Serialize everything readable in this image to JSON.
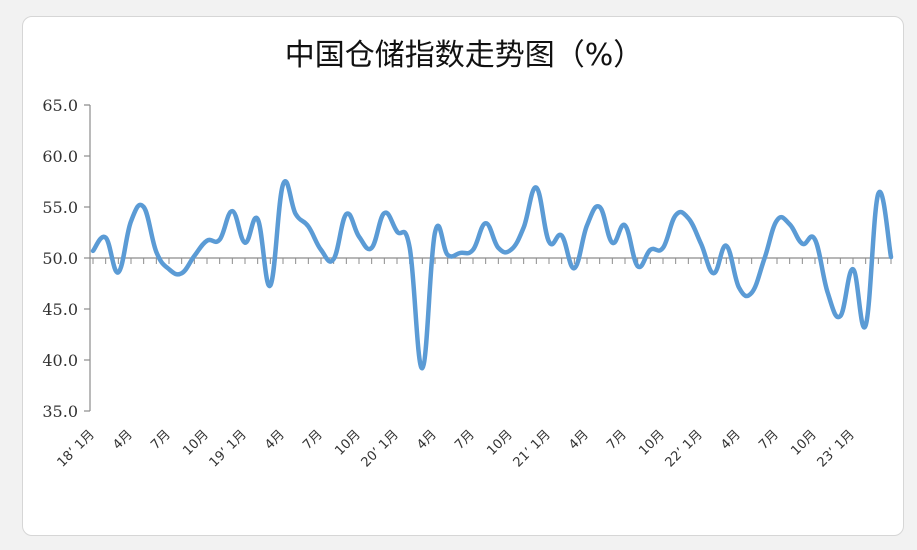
{
  "chart_data": {
    "type": "line",
    "title": "中国仓储指数走势图（%）",
    "xlabel": "",
    "ylabel": "",
    "ylim": [
      35,
      65
    ],
    "yticks": [
      "65.0",
      "60.0",
      "55.0",
      "50.0",
      "45.0",
      "40.0",
      "35.0"
    ],
    "baseline": 50,
    "grid": false,
    "legend": "none",
    "line_color": "#5b9bd5",
    "x_tick_labels": [
      {
        "index": 0,
        "label": "18’ 1月"
      },
      {
        "index": 3,
        "label": "4月"
      },
      {
        "index": 6,
        "label": "7月"
      },
      {
        "index": 9,
        "label": "10月"
      },
      {
        "index": 12,
        "label": "19’ 1月"
      },
      {
        "index": 15,
        "label": "4月"
      },
      {
        "index": 18,
        "label": "7月"
      },
      {
        "index": 21,
        "label": "10月"
      },
      {
        "index": 24,
        "label": "20’ 1月"
      },
      {
        "index": 27,
        "label": "4月"
      },
      {
        "index": 30,
        "label": "7月"
      },
      {
        "index": 33,
        "label": "10月"
      },
      {
        "index": 36,
        "label": "21’ 1月"
      },
      {
        "index": 39,
        "label": "4月"
      },
      {
        "index": 42,
        "label": "7月"
      },
      {
        "index": 45,
        "label": "10月"
      },
      {
        "index": 48,
        "label": "22’ 1月"
      },
      {
        "index": 51,
        "label": "4月"
      },
      {
        "index": 54,
        "label": "7月"
      },
      {
        "index": 57,
        "label": "10月"
      },
      {
        "index": 60,
        "label": "23’ 1月"
      }
    ],
    "series": [
      {
        "values": [
          50.7,
          52.0,
          48.6,
          53.6,
          55.0,
          50.6,
          48.9,
          48.5,
          50.2,
          51.7,
          51.8,
          54.6,
          51.5,
          53.8,
          47.3,
          57.2,
          54.3,
          53.1,
          50.8,
          49.9,
          54.3,
          52.1,
          51.0,
          54.4,
          52.6,
          51.0,
          39.2,
          52.5,
          50.3,
          50.5,
          50.8,
          53.4,
          51.0,
          50.8,
          53.0,
          56.9,
          51.6,
          52.2,
          49.0,
          53.2,
          55.0,
          51.5,
          53.2,
          49.2,
          50.8,
          51.0,
          54.2,
          53.9,
          51.4,
          48.5,
          51.2,
          47.1,
          46.6,
          49.9,
          53.7,
          53.3,
          51.4,
          51.8,
          46.6,
          44.3,
          48.9,
          43.4,
          56.3,
          50.1
        ]
      }
    ]
  }
}
